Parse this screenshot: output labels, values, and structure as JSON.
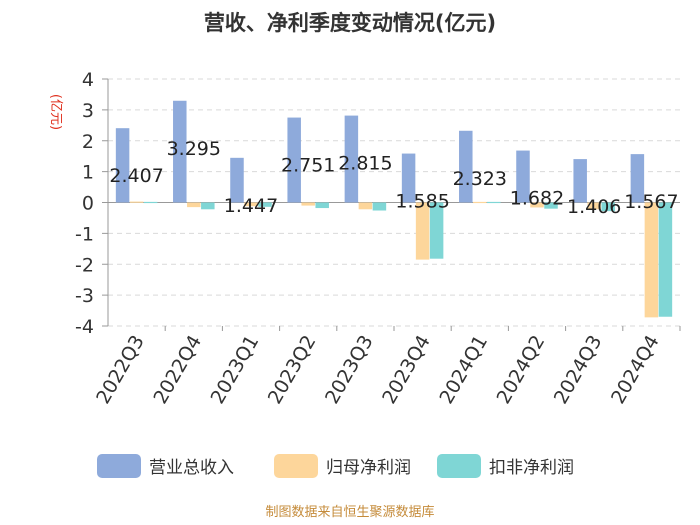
{
  "chart_data": {
    "type": "bar",
    "title": "营收、净利季度变动情况(亿元)",
    "ylabel": "(亿元)",
    "xlabel": "",
    "ylim": [
      -4,
      4
    ],
    "yticks": [
      4,
      3,
      2,
      1,
      0,
      -1,
      -2,
      -3,
      -4
    ],
    "categories": [
      "2022Q3",
      "2022Q4",
      "2023Q1",
      "2023Q2",
      "2023Q3",
      "2023Q4",
      "2024Q1",
      "2024Q2",
      "2024Q3",
      "2024Q4"
    ],
    "series": [
      {
        "name": "营业总收入",
        "color": "#8eaadb",
        "values": [
          2.407,
          3.295,
          1.447,
          2.751,
          2.815,
          1.585,
          2.323,
          1.682,
          1.406,
          1.567
        ],
        "labels": [
          "2.407",
          "3.295",
          "1.447",
          "2.751",
          "2.815",
          "1.585",
          "2.323",
          "1.682",
          "1.406",
          "1.567"
        ]
      },
      {
        "name": "归母净利润",
        "color": "#fdd69b",
        "values": [
          0.03,
          -0.15,
          -0.12,
          -0.1,
          -0.22,
          -1.85,
          0.02,
          -0.16,
          -0.22,
          -3.72
        ]
      },
      {
        "name": "扣非净利润",
        "color": "#7fd6d5",
        "values": [
          0.02,
          -0.22,
          -0.14,
          -0.18,
          -0.26,
          -1.82,
          0.02,
          -0.2,
          -0.28,
          -3.7
        ]
      }
    ],
    "legend_position": "bottom",
    "grid": true,
    "source": "制图数据来自恒生聚源数据库"
  }
}
